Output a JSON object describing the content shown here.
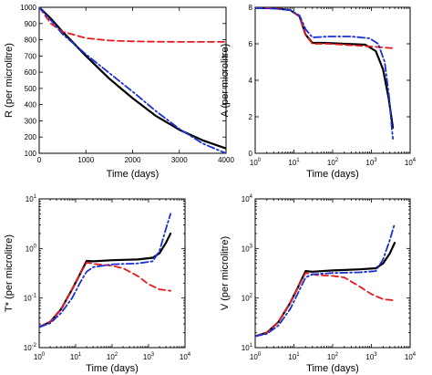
{
  "figure": {
    "panels_count": 4
  },
  "chart_data": [
    {
      "id": "R",
      "type": "line",
      "xscale": "linear",
      "yscale": "linear",
      "xlabel": "Time (days)",
      "ylabel": "R (per microlitre)",
      "xlim": [
        0,
        4000
      ],
      "ylim": [
        100,
        1000
      ],
      "xticks": [
        0,
        1000,
        2000,
        3000,
        4000
      ],
      "xtick_labels": [
        "0",
        "1000",
        "2000",
        "3000",
        "4000"
      ],
      "yticks": [
        100,
        200,
        300,
        400,
        500,
        600,
        700,
        800,
        900,
        1000
      ],
      "ytick_labels": [
        "100",
        "200",
        "300",
        "400",
        "500",
        "600",
        "700",
        "800",
        "900",
        "1000"
      ],
      "series": [
        {
          "color": "#000000",
          "style": "solid",
          "points": [
            [
              0,
              1000
            ],
            [
              250,
              930
            ],
            [
              500,
              850
            ],
            [
              1000,
              700
            ],
            [
              1500,
              560
            ],
            [
              2000,
              440
            ],
            [
              2500,
              330
            ],
            [
              3000,
              245
            ],
            [
              3500,
              180
            ],
            [
              4000,
              130
            ]
          ]
        },
        {
          "color": "#e8191e",
          "style": "dashed",
          "points": [
            [
              0,
              1000
            ],
            [
              250,
              900
            ],
            [
              500,
              850
            ],
            [
              1000,
              810
            ],
            [
              1500,
              795
            ],
            [
              2000,
              790
            ],
            [
              2500,
              788
            ],
            [
              3000,
              787
            ],
            [
              3500,
              787
            ],
            [
              4000,
              787
            ]
          ]
        },
        {
          "color": "#1a2fd6",
          "style": "dashdot",
          "points": [
            [
              0,
              1000
            ],
            [
              250,
              920
            ],
            [
              500,
              835
            ],
            [
              1000,
              710
            ],
            [
              1500,
              595
            ],
            [
              2000,
              480
            ],
            [
              2500,
              360
            ],
            [
              3000,
              250
            ],
            [
              3500,
              160
            ],
            [
              4000,
              100
            ]
          ]
        }
      ]
    },
    {
      "id": "A",
      "type": "line",
      "xscale": "log",
      "yscale": "linear",
      "xlabel": "Time (days)",
      "ylabel": "A (per microlitre)",
      "xlim": [
        1,
        10000
      ],
      "ylim": [
        0,
        8
      ],
      "xticks": [
        1,
        10,
        100,
        1000,
        10000
      ],
      "xtick_labels": [
        [
          "10",
          "0"
        ],
        [
          "10",
          "1"
        ],
        [
          "10",
          "2"
        ],
        [
          "10",
          "3"
        ],
        [
          "10",
          "4"
        ]
      ],
      "yticks": [
        0,
        2,
        4,
        6,
        8
      ],
      "ytick_labels": [
        "0",
        "2",
        "4",
        "6",
        "8"
      ],
      "series": [
        {
          "color": "#000000",
          "style": "solid",
          "points": [
            [
              1,
              7.97
            ],
            [
              3,
              7.95
            ],
            [
              8,
              7.85
            ],
            [
              14,
              7.5
            ],
            [
              20,
              6.5
            ],
            [
              30,
              6.05
            ],
            [
              60,
              6.05
            ],
            [
              200,
              6.0
            ],
            [
              700,
              5.95
            ],
            [
              1300,
              5.6
            ],
            [
              2000,
              4.6
            ],
            [
              2800,
              3.0
            ],
            [
              3600,
              1.4
            ]
          ]
        },
        {
          "color": "#e8191e",
          "style": "dashed",
          "points": [
            [
              1,
              7.97
            ],
            [
              3,
              7.95
            ],
            [
              8,
              7.85
            ],
            [
              14,
              7.5
            ],
            [
              20,
              6.5
            ],
            [
              30,
              6.0
            ],
            [
              80,
              6.0
            ],
            [
              300,
              5.92
            ],
            [
              1000,
              5.85
            ],
            [
              2000,
              5.8
            ],
            [
              4000,
              5.75
            ]
          ]
        },
        {
          "color": "#1a2fd6",
          "style": "dashdot",
          "points": [
            [
              1,
              7.95
            ],
            [
              3,
              7.93
            ],
            [
              8,
              7.85
            ],
            [
              14,
              7.55
            ],
            [
              20,
              6.8
            ],
            [
              30,
              6.35
            ],
            [
              80,
              6.4
            ],
            [
              300,
              6.4
            ],
            [
              900,
              6.3
            ],
            [
              1500,
              6.0
            ],
            [
              2200,
              5.0
            ],
            [
              2900,
              3.0
            ],
            [
              3300,
              1.6
            ],
            [
              3600,
              0.8
            ]
          ]
        }
      ]
    },
    {
      "id": "Tstar",
      "type": "line",
      "xscale": "log",
      "yscale": "log",
      "xlabel": "Time (days)",
      "ylabel": "T* (per microlitre)",
      "xlim": [
        1,
        10000
      ],
      "ylim": [
        0.01,
        10
      ],
      "xticks": [
        1,
        10,
        100,
        1000,
        10000
      ],
      "xtick_labels": [
        [
          "10",
          "0"
        ],
        [
          "10",
          "1"
        ],
        [
          "10",
          "2"
        ],
        [
          "10",
          "3"
        ],
        [
          "10",
          "4"
        ]
      ],
      "yticks": [
        0.01,
        0.1,
        1,
        10
      ],
      "ytick_labels": [
        [
          "10",
          "-2"
        ],
        [
          "10",
          "-1"
        ],
        [
          "10",
          "0"
        ],
        [
          "10",
          "1"
        ]
      ],
      "series": [
        {
          "color": "#000000",
          "style": "solid",
          "points": [
            [
              1,
              0.026
            ],
            [
              2,
              0.033
            ],
            [
              4,
              0.06
            ],
            [
              8,
              0.15
            ],
            [
              13,
              0.3
            ],
            [
              20,
              0.56
            ],
            [
              30,
              0.55
            ],
            [
              100,
              0.58
            ],
            [
              500,
              0.6
            ],
            [
              1300,
              0.65
            ],
            [
              2000,
              0.8
            ],
            [
              3000,
              1.3
            ],
            [
              4000,
              2.0
            ]
          ]
        },
        {
          "color": "#e8191e",
          "style": "dashed",
          "points": [
            [
              1,
              0.026
            ],
            [
              2,
              0.033
            ],
            [
              4,
              0.06
            ],
            [
              8,
              0.15
            ],
            [
              13,
              0.3
            ],
            [
              20,
              0.52
            ],
            [
              40,
              0.48
            ],
            [
              100,
              0.45
            ],
            [
              200,
              0.4
            ],
            [
              500,
              0.28
            ],
            [
              1000,
              0.19
            ],
            [
              2000,
              0.15
            ],
            [
              4000,
              0.14
            ]
          ]
        },
        {
          "color": "#1a2fd6",
          "style": "dashdot",
          "points": [
            [
              1,
              0.026
            ],
            [
              2,
              0.031
            ],
            [
              4,
              0.05
            ],
            [
              8,
              0.1
            ],
            [
              13,
              0.2
            ],
            [
              20,
              0.34
            ],
            [
              30,
              0.42
            ],
            [
              100,
              0.48
            ],
            [
              500,
              0.5
            ],
            [
              1300,
              0.55
            ],
            [
              2000,
              0.9
            ],
            [
              3000,
              2.5
            ],
            [
              4000,
              5.0
            ]
          ]
        }
      ]
    },
    {
      "id": "V",
      "type": "line",
      "xscale": "log",
      "yscale": "log",
      "xlabel": "Time (days)",
      "ylabel": "V (per microlitre)",
      "xlim": [
        1,
        10000
      ],
      "ylim": [
        10,
        10000
      ],
      "xticks": [
        1,
        10,
        100,
        1000,
        10000
      ],
      "xtick_labels": [
        [
          "10",
          "0"
        ],
        [
          "10",
          "1"
        ],
        [
          "10",
          "2"
        ],
        [
          "10",
          "3"
        ],
        [
          "10",
          "4"
        ]
      ],
      "yticks": [
        10,
        100,
        1000,
        10000
      ],
      "ytick_labels": [
        [
          "10",
          "1"
        ],
        [
          "10",
          "2"
        ],
        [
          "10",
          "3"
        ],
        [
          "10",
          "4"
        ]
      ],
      "series": [
        {
          "color": "#000000",
          "style": "solid",
          "points": [
            [
              1,
              17
            ],
            [
              2,
              20
            ],
            [
              4,
              33
            ],
            [
              8,
              80
            ],
            [
              13,
              170
            ],
            [
              20,
              350
            ],
            [
              30,
              340
            ],
            [
              100,
              360
            ],
            [
              500,
              380
            ],
            [
              1300,
              400
            ],
            [
              2000,
              500
            ],
            [
              3000,
              800
            ],
            [
              4000,
              1300
            ]
          ]
        },
        {
          "color": "#e8191e",
          "style": "dashed",
          "points": [
            [
              1,
              17
            ],
            [
              2,
              20
            ],
            [
              4,
              33
            ],
            [
              8,
              80
            ],
            [
              13,
              170
            ],
            [
              20,
              320
            ],
            [
              40,
              290
            ],
            [
              100,
              280
            ],
            [
              200,
              260
            ],
            [
              500,
              170
            ],
            [
              1000,
              120
            ],
            [
              2000,
              95
            ],
            [
              4000,
              90
            ]
          ]
        },
        {
          "color": "#1a2fd6",
          "style": "dashdot",
          "points": [
            [
              1,
              17
            ],
            [
              2,
              19
            ],
            [
              4,
              28
            ],
            [
              8,
              60
            ],
            [
              13,
              130
            ],
            [
              20,
              260
            ],
            [
              30,
              300
            ],
            [
              100,
              320
            ],
            [
              500,
              330
            ],
            [
              1300,
              350
            ],
            [
              2000,
              600
            ],
            [
              3000,
              1500
            ],
            [
              4000,
              3200
            ]
          ]
        }
      ]
    }
  ]
}
